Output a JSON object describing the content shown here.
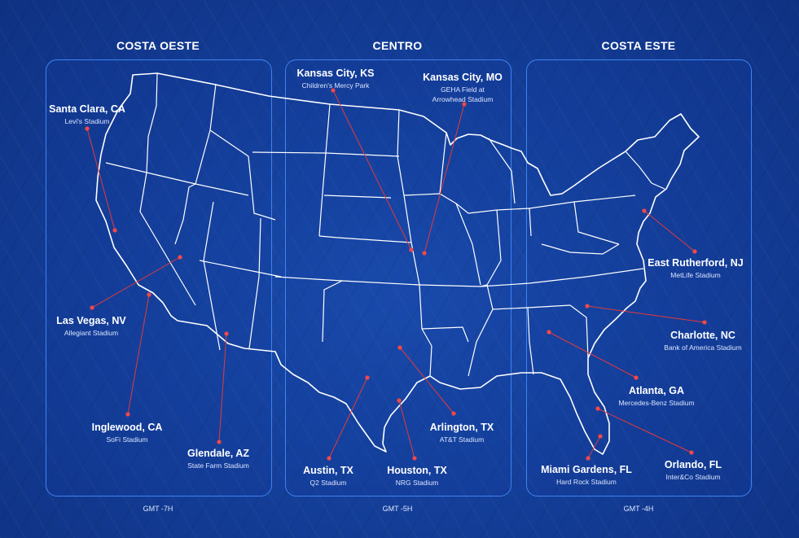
{
  "regions": [
    {
      "id": "west",
      "title": "COSTA OESTE",
      "gmt": "GMT -7H"
    },
    {
      "id": "central",
      "title": "CENTRO",
      "gmt": "GMT -5H"
    },
    {
      "id": "east",
      "title": "COSTA ESTE",
      "gmt": "GMT -4H"
    }
  ],
  "venues": [
    {
      "id": "santa-clara",
      "city": "Santa Clara, CA",
      "stadium": "Levi's Stadium"
    },
    {
      "id": "las-vegas",
      "city": "Las Vegas, NV",
      "stadium": "Allegiant Stadium"
    },
    {
      "id": "inglewood",
      "city": "Inglewood, CA",
      "stadium": "SoFi Stadium"
    },
    {
      "id": "glendale",
      "city": "Glendale, AZ",
      "stadium": "State Farm Stadium"
    },
    {
      "id": "kansas-city-ks",
      "city": "Kansas City, KS",
      "stadium": "Children's Mercy Park"
    },
    {
      "id": "kansas-city-mo",
      "city": "Kansas City, MO",
      "stadium": "GEHA Field at Arrowhead Stadium"
    },
    {
      "id": "arlington",
      "city": "Arlington, TX",
      "stadium": "AT&T Stadium"
    },
    {
      "id": "austin",
      "city": "Austin, TX",
      "stadium": "Q2 Stadium"
    },
    {
      "id": "houston",
      "city": "Houston, TX",
      "stadium": "NRG Stadium"
    },
    {
      "id": "east-rutherford",
      "city": "East Rutherford, NJ",
      "stadium": "MetLife Stadium"
    },
    {
      "id": "charlotte",
      "city": "Charlotte, NC",
      "stadium": "Bank of America Stadium"
    },
    {
      "id": "atlanta",
      "city": "Atlanta, GA",
      "stadium": "Mercedes-Benz Stadium"
    },
    {
      "id": "orlando",
      "city": "Orlando, FL",
      "stadium": "Inter&Co Stadium"
    },
    {
      "id": "miami-gardens",
      "city": "Miami Gardens, FL",
      "stadium": "Hard Rock Stadium"
    }
  ],
  "colors": {
    "background": "#123c97",
    "region_border": "#3f83f0",
    "pin": "#e23a3a",
    "map_lines": "#ffffff"
  }
}
